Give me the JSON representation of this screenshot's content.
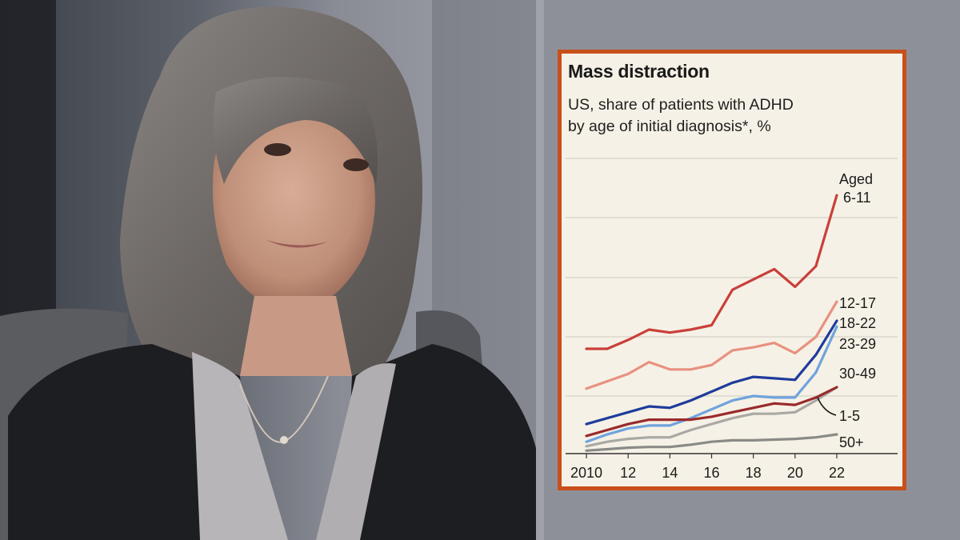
{
  "chart_data": {
    "type": "line",
    "title": "Mass distraction",
    "subtitle_lines": [
      "US, share of patients with ADHD",
      "by age of initial diagnosis*, %"
    ],
    "x_tick_labels": [
      "2010",
      "12",
      "14",
      "16",
      "18",
      "20",
      "22"
    ],
    "x_ticks": [
      2010,
      2012,
      2014,
      2016,
      2018,
      2020,
      2022
    ],
    "xlim": [
      2010,
      2022
    ],
    "y_scale": "unlabelled, 5 horizontal gridlines",
    "grid": true,
    "legend": "direct labels at line ends (right)",
    "x": [
      2010,
      2011,
      2012,
      2013,
      2014,
      2015,
      2016,
      2017,
      2018,
      2019,
      2020,
      2021,
      2022
    ],
    "series": [
      {
        "name": "Aged 6-11",
        "label_lines": [
          "Aged",
          "6-11"
        ],
        "color": "#c9403a",
        "values": [
          7.1,
          7.1,
          7.7,
          8.4,
          8.2,
          8.4,
          8.7,
          11.1,
          11.8,
          12.5,
          11.3,
          12.7,
          17.5
        ]
      },
      {
        "name": "12-17",
        "color": "#e89180",
        "values": [
          4.4,
          4.9,
          5.4,
          6.2,
          5.7,
          5.7,
          6.0,
          7.0,
          7.2,
          7.5,
          6.8,
          7.9,
          10.3
        ]
      },
      {
        "name": "18-22",
        "color": "#1f3c9c",
        "values": [
          2.0,
          2.4,
          2.8,
          3.2,
          3.1,
          3.6,
          4.2,
          4.8,
          5.2,
          5.1,
          5.0,
          6.7,
          9.0
        ]
      },
      {
        "name": "23-29",
        "color": "#6fa3dd",
        "values": [
          0.8,
          1.3,
          1.7,
          1.9,
          1.9,
          2.4,
          3.0,
          3.6,
          3.9,
          3.8,
          3.8,
          5.5,
          8.6
        ]
      },
      {
        "name": "30-49",
        "color": "#a9a9a4",
        "values": [
          0.5,
          0.8,
          1.0,
          1.1,
          1.1,
          1.6,
          2.0,
          2.4,
          2.7,
          2.7,
          2.8,
          3.6,
          4.5
        ]
      },
      {
        "name": "1-5",
        "color": "#9a2b2b",
        "values": [
          1.2,
          1.6,
          2.0,
          2.3,
          2.3,
          2.3,
          2.5,
          2.8,
          3.1,
          3.4,
          3.3,
          3.8,
          4.5
        ]
      },
      {
        "name": "50+",
        "color": "#8a8a86",
        "values": [
          0.2,
          0.3,
          0.4,
          0.45,
          0.45,
          0.6,
          0.8,
          0.9,
          0.9,
          0.95,
          1.0,
          1.1,
          1.3
        ]
      }
    ]
  }
}
